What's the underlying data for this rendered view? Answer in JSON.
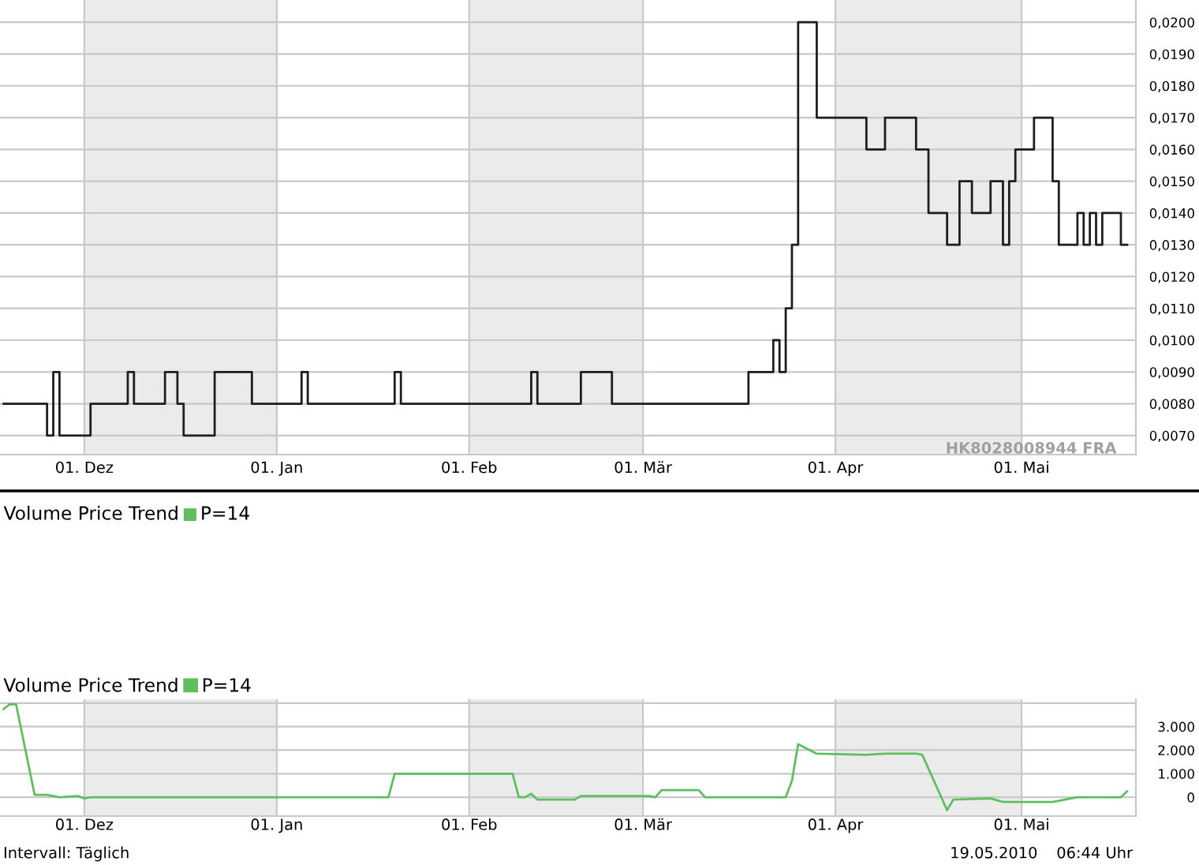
{
  "chart_data": [
    {
      "type": "step",
      "color": "#1e1e1e",
      "x": [
        "2009-11-18",
        "2009-11-25",
        "2009-11-26",
        "2009-11-27",
        "2009-12-02",
        "2009-12-08",
        "2009-12-09",
        "2009-12-14",
        "2009-12-16",
        "2009-12-17",
        "2009-12-22",
        "2009-12-28",
        "2010-01-05",
        "2010-01-06",
        "2010-01-20",
        "2010-01-21",
        "2010-02-11",
        "2010-02-12",
        "2010-02-19",
        "2010-02-24",
        "2010-03-18",
        "2010-03-22",
        "2010-03-23",
        "2010-03-24",
        "2010-03-25",
        "2010-03-26",
        "2010-03-29",
        "2010-04-06",
        "2010-04-09",
        "2010-04-14",
        "2010-04-16",
        "2010-04-19",
        "2010-04-21",
        "2010-04-23",
        "2010-04-26",
        "2010-04-28",
        "2010-04-29",
        "2010-04-30",
        "2010-05-03",
        "2010-05-06",
        "2010-05-07",
        "2010-05-10",
        "2010-05-11",
        "2010-05-12",
        "2010-05-13",
        "2010-05-14",
        "2010-05-17",
        "2010-05-18"
      ],
      "values": [
        0.008,
        0.007,
        0.009,
        0.007,
        0.008,
        0.009,
        0.008,
        0.009,
        0.008,
        0.007,
        0.009,
        0.008,
        0.009,
        0.008,
        0.009,
        0.008,
        0.009,
        0.008,
        0.009,
        0.008,
        0.009,
        0.01,
        0.009,
        0.011,
        0.013,
        0.02,
        0.017,
        0.016,
        0.017,
        0.016,
        0.014,
        0.013,
        0.015,
        0.014,
        0.015,
        0.013,
        0.015,
        0.016,
        0.017,
        0.015,
        0.013,
        0.014,
        0.013,
        0.014,
        0.013,
        0.014,
        0.013,
        0.013
      ],
      "xlim": [
        "2009-11-17T10:00",
        "2010-05-19T10:00"
      ],
      "ylim": [
        0.0064,
        0.0207
      ],
      "xticks": [
        {
          "value": "2009-12-01",
          "label": "01. Dez"
        },
        {
          "value": "2010-01-01",
          "label": "01. Jan"
        },
        {
          "value": "2010-02-01",
          "label": "01. Feb"
        },
        {
          "value": "2010-03-01",
          "label": "01. Mär"
        },
        {
          "value": "2010-04-01",
          "label": "01. Apr"
        },
        {
          "value": "2010-05-01",
          "label": "01. Mai"
        }
      ],
      "yticks": [
        {
          "value": 0.007,
          "label": "0,0070"
        },
        {
          "value": 0.008,
          "label": "0,0080"
        },
        {
          "value": 0.009,
          "label": "0,0090"
        },
        {
          "value": 0.01,
          "label": "0,0100"
        },
        {
          "value": 0.011,
          "label": "0,0110"
        },
        {
          "value": 0.012,
          "label": "0,0120"
        },
        {
          "value": 0.013,
          "label": "0,0130"
        },
        {
          "value": 0.014,
          "label": "0,0140"
        },
        {
          "value": 0.015,
          "label": "0,0150"
        },
        {
          "value": 0.016,
          "label": "0,0160"
        },
        {
          "value": 0.017,
          "label": "0,0170"
        },
        {
          "value": 0.018,
          "label": "0,0180"
        },
        {
          "value": 0.019,
          "label": "0,0190"
        },
        {
          "value": 0.02,
          "label": "0,0200"
        }
      ],
      "grid": true,
      "bands": [
        {
          "axis": "x",
          "from": "2009-12-01",
          "to": "2010-01-01",
          "color": "#ebebeb"
        },
        {
          "axis": "x",
          "from": "2010-02-01",
          "to": "2010-03-01",
          "color": "#ebebeb"
        },
        {
          "axis": "x",
          "from": "2010-04-01",
          "to": "2010-05-01",
          "color": "#ebebeb"
        }
      ],
      "annotations": [
        "HK8028008944 FRA"
      ]
    },
    {
      "type": "other",
      "title": "Volume Price Trend",
      "annotations": [
        "P=14"
      ]
    },
    {
      "type": "line",
      "title": "Volume Price Trend",
      "legend": "top left",
      "x": [
        "2009-11-18",
        "2009-11-19",
        "2009-11-20",
        "2009-11-23",
        "2009-11-25",
        "2009-11-27",
        "2009-11-30",
        "2009-12-01",
        "2009-12-02",
        "2010-01-19",
        "2010-01-20",
        "2010-02-08",
        "2010-02-09",
        "2010-02-10",
        "2010-02-11",
        "2010-02-12",
        "2010-02-18",
        "2010-02-19",
        "2010-03-02",
        "2010-03-03",
        "2010-03-04",
        "2010-03-10",
        "2010-03-11",
        "2010-03-24",
        "2010-03-25",
        "2010-03-26",
        "2010-03-29",
        "2010-04-06",
        "2010-04-09",
        "2010-04-14",
        "2010-04-15",
        "2010-04-19",
        "2010-04-20",
        "2010-04-26",
        "2010-04-28",
        "2010-05-06",
        "2010-05-10",
        "2010-05-17",
        "2010-05-18"
      ],
      "series": [
        {
          "name": "P=14",
          "color": "#5fbf5f",
          "values": [
            3750,
            3950,
            3950,
            100,
            100,
            0,
            50,
            -50,
            0,
            0,
            1000,
            1000,
            0,
            0,
            150,
            -100,
            -100,
            50,
            50,
            0,
            300,
            300,
            0,
            0,
            700,
            2250,
            1850,
            1800,
            1850,
            1850,
            1800,
            -550,
            -100,
            -50,
            -200,
            -200,
            0,
            0,
            250
          ]
        }
      ],
      "xlim": [
        "2009-11-17T10:00",
        "2010-05-19T10:00"
      ],
      "ylim": [
        -800,
        4160
      ],
      "xticks": [
        {
          "value": "2009-12-01",
          "label": "01. Dez"
        },
        {
          "value": "2010-01-01",
          "label": "01. Jan"
        },
        {
          "value": "2010-02-01",
          "label": "01. Feb"
        },
        {
          "value": "2010-03-01",
          "label": "01. Mär"
        },
        {
          "value": "2010-04-01",
          "label": "01. Apr"
        },
        {
          "value": "2010-05-01",
          "label": "01. Mai"
        }
      ],
      "yticks": [
        0,
        {
          "value": 1000,
          "label": "1.000"
        },
        {
          "value": 2000,
          "label": "2.000"
        },
        {
          "value": 3000,
          "label": "3.000"
        },
        {
          "value": 4000,
          "label": null
        }
      ],
      "grid": true,
      "bands": [
        {
          "axis": "x",
          "from": "2009-12-01",
          "to": "2010-01-01",
          "color": "#ebebeb"
        },
        {
          "axis": "x",
          "from": "2010-02-01",
          "to": "2010-03-01",
          "color": "#ebebeb"
        },
        {
          "axis": "x",
          "from": "2010-04-01",
          "to": "2010-05-01",
          "color": "#ebebeb"
        }
      ],
      "annotations": [
        "Intervall: Täglich",
        "19.05.2010",
        "06:44 Uhr"
      ]
    }
  ]
}
